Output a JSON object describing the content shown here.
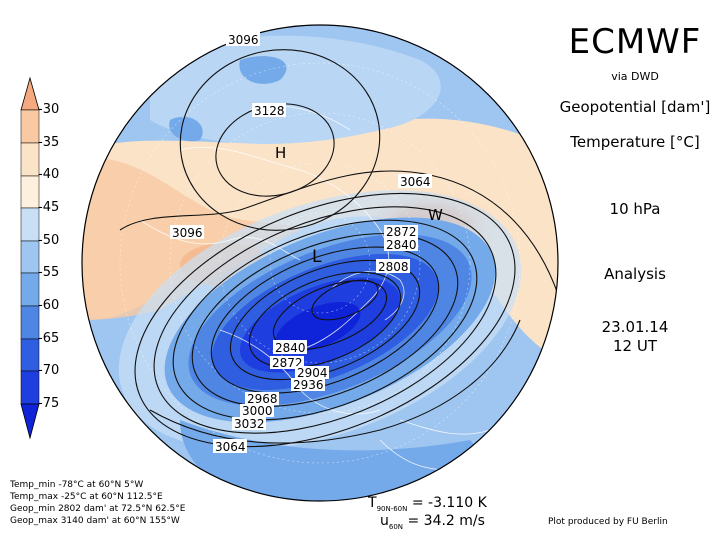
{
  "header": {
    "title": "ECMWF",
    "subtitle": "via DWD",
    "var1": "Geopotential [dam']",
    "var2": "Temperature [°C]",
    "level": "10 hPa",
    "kind": "Analysis",
    "date": "23.01.14",
    "time": "12 UT"
  },
  "colorbar": {
    "labels": [
      "-30",
      "-35",
      "-40",
      "-45",
      "-50",
      "-55",
      "-60",
      "-65",
      "-70",
      "-75"
    ],
    "colors": [
      "#f4a97e",
      "#f8c9a2",
      "#fbe3c8",
      "#c9dff5",
      "#9ec6f0",
      "#74a9ea",
      "#4f86e4",
      "#2f5fe0",
      "#1f3ee0",
      "#0f24d8"
    ]
  },
  "map": {
    "contour_labels": [
      "3096",
      "3128",
      "3064",
      "3096",
      "2872",
      "2840",
      "2808",
      "2840",
      "2872",
      "2904",
      "2936",
      "2968",
      "3000",
      "3032",
      "3064"
    ],
    "markers": [
      "H",
      "W",
      "L"
    ]
  },
  "stats": {
    "line1": "Temp_min  -78°C at 60°N 5°W",
    "line2": "Temp_max  -25°C at 60°N 112.5°E",
    "line3": "Geop_min  2802 dam' at 72.5°N 62.5°E",
    "line4": "Geop_max  3140 dam' at 60°N 155°W"
  },
  "diagnostics": {
    "t_label": "T",
    "t_sub": "90N-60N",
    "t_value": "=  -3.110 K",
    "u_label": "u",
    "u_sub": "60N",
    "u_value": "=  34.2 m/s"
  },
  "credit": "Plot produced by FU Berlin"
}
